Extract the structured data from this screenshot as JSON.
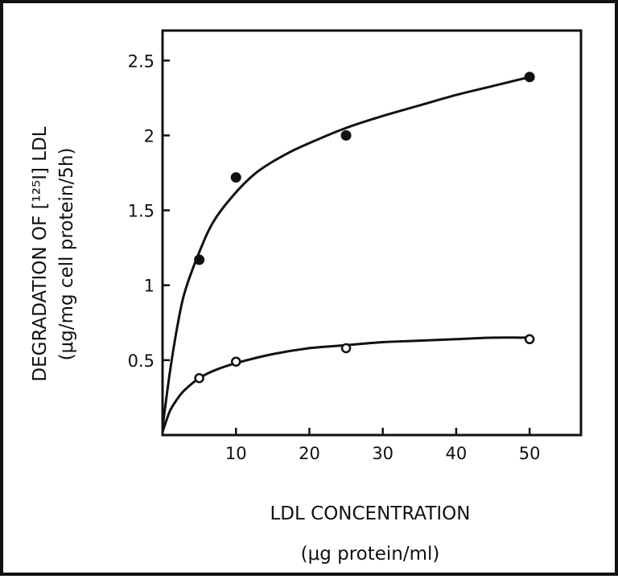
{
  "chart_data": {
    "type": "line",
    "xlabel": "LDL CONCENTRATION",
    "xlabel_unit": "(μg protein/ml)",
    "ylabel_html": "DEGRADATION OF [¹²⁵I] LDL",
    "ylabel": "DEGRADATION OF [¹²⁵I] LDL",
    "ylabel_unit": "(μg/mg cell protein/5h)",
    "xlim": [
      0,
      57
    ],
    "ylim": [
      0,
      2.7
    ],
    "xticks": [
      10,
      20,
      30,
      40,
      50
    ],
    "xtick_labels": [
      "10",
      "20",
      "30",
      "40",
      "50"
    ],
    "yticks": [
      0.5,
      1,
      1.5,
      2,
      2.5
    ],
    "ytick_labels": [
      "0.5",
      "1",
      "1.5",
      "2",
      "2.5"
    ],
    "grid": false,
    "series": [
      {
        "marker": "filled-circle",
        "color": "#111111",
        "points": [
          [
            5,
            1.17
          ],
          [
            10,
            1.72
          ],
          [
            25,
            2.0
          ],
          [
            50,
            2.39
          ]
        ],
        "curve": [
          [
            0,
            0.05
          ],
          [
            1,
            0.42
          ],
          [
            2,
            0.72
          ],
          [
            3,
            0.95
          ],
          [
            5,
            1.22
          ],
          [
            7,
            1.43
          ],
          [
            10,
            1.62
          ],
          [
            13,
            1.76
          ],
          [
            17,
            1.88
          ],
          [
            21,
            1.97
          ],
          [
            25,
            2.05
          ],
          [
            30,
            2.13
          ],
          [
            35,
            2.2
          ],
          [
            40,
            2.27
          ],
          [
            45,
            2.33
          ],
          [
            50,
            2.39
          ]
        ]
      },
      {
        "marker": "open-circle",
        "color": "#111111",
        "points": [
          [
            5,
            0.38
          ],
          [
            10,
            0.49
          ],
          [
            25,
            0.58
          ],
          [
            50,
            0.64
          ]
        ],
        "curve": [
          [
            0,
            0.02
          ],
          [
            1,
            0.16
          ],
          [
            2,
            0.24
          ],
          [
            3,
            0.3
          ],
          [
            5,
            0.38
          ],
          [
            7,
            0.43
          ],
          [
            10,
            0.48
          ],
          [
            15,
            0.54
          ],
          [
            20,
            0.58
          ],
          [
            25,
            0.6
          ],
          [
            30,
            0.62
          ],
          [
            35,
            0.63
          ],
          [
            40,
            0.64
          ],
          [
            45,
            0.65
          ],
          [
            50,
            0.65
          ]
        ]
      }
    ]
  }
}
